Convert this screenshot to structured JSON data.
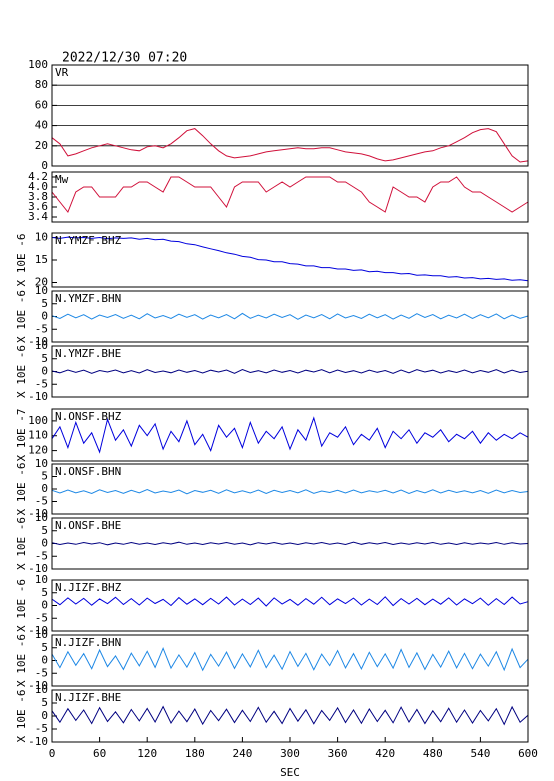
{
  "chart_data": {
    "type": "line",
    "title": "2022/12/30 07:20",
    "xlabel": "SEC",
    "xlim": [
      0,
      600
    ],
    "xticks": [
      0,
      60,
      120,
      180,
      240,
      300,
      360,
      420,
      480,
      540,
      600
    ],
    "x": [
      0,
      10,
      20,
      30,
      40,
      50,
      60,
      70,
      80,
      90,
      100,
      110,
      120,
      130,
      140,
      150,
      160,
      170,
      180,
      190,
      200,
      210,
      220,
      230,
      240,
      250,
      260,
      270,
      280,
      290,
      300,
      310,
      320,
      330,
      340,
      350,
      360,
      370,
      380,
      390,
      400,
      410,
      420,
      430,
      440,
      450,
      460,
      470,
      480,
      490,
      500,
      510,
      520,
      530,
      540,
      550,
      560,
      570,
      580,
      590,
      600
    ],
    "series": [
      {
        "name": "VR",
        "color": "#d0103a",
        "ylim": [
          0,
          100
        ],
        "yticks": [
          0,
          20,
          40,
          60,
          80,
          100
        ],
        "grid": true,
        "values": [
          28,
          22,
          10,
          12,
          15,
          18,
          20,
          22,
          20,
          18,
          16,
          15,
          19,
          20,
          18,
          22,
          28,
          35,
          37,
          30,
          22,
          15,
          10,
          8,
          9,
          10,
          12,
          14,
          15,
          16,
          17,
          18,
          17,
          17,
          18,
          18,
          16,
          14,
          13,
          12,
          10,
          7,
          5,
          6,
          8,
          10,
          12,
          14,
          15,
          18,
          20,
          24,
          28,
          33,
          36,
          37,
          34,
          22,
          10,
          4,
          5
        ]
      },
      {
        "name": "Mw",
        "color": "#d0103a",
        "ylim": [
          3.3,
          4.3
        ],
        "yticks": [
          3.4,
          3.6,
          3.8,
          {
            "value": 4,
            "label": "4.0"
          },
          4.2
        ],
        "values": [
          3.9,
          3.7,
          3.5,
          3.9,
          4.0,
          4.0,
          3.8,
          3.8,
          3.8,
          4.0,
          4.0,
          4.1,
          4.1,
          4.0,
          3.9,
          4.2,
          4.2,
          4.1,
          4.0,
          4.0,
          4.0,
          3.8,
          3.6,
          4.0,
          4.1,
          4.1,
          4.1,
          3.9,
          4.0,
          4.1,
          4.0,
          4.1,
          4.2,
          4.2,
          4.2,
          4.2,
          4.1,
          4.1,
          4.0,
          3.9,
          3.7,
          3.6,
          3.5,
          4.0,
          3.9,
          3.8,
          3.8,
          3.7,
          4.0,
          4.1,
          4.1,
          4.2,
          4.0,
          3.9,
          3.9,
          3.8,
          3.7,
          3.6,
          3.5,
          3.6,
          3.7
        ]
      },
      {
        "name": "N.YMZF.BHZ",
        "ylabel": "X 10E -6",
        "color": "#0000dd",
        "ylim": [
          21,
          9
        ],
        "yticks": [
          10,
          15,
          20
        ],
        "values": [
          10,
          10.2,
          9.9,
          10.1,
          10,
          10.2,
          10,
          10.3,
          10.1,
          10.2,
          10.1,
          10.4,
          10.2,
          10.5,
          10.4,
          10.8,
          10.9,
          11.4,
          11.6,
          12.1,
          12.5,
          12.9,
          13.4,
          13.7,
          14.2,
          14.4,
          14.9,
          15,
          15.4,
          15.4,
          15.8,
          15.9,
          16.3,
          16.3,
          16.7,
          16.7,
          17,
          17,
          17.3,
          17.2,
          17.6,
          17.5,
          17.8,
          17.8,
          18.1,
          18,
          18.4,
          18.3,
          18.5,
          18.5,
          18.8,
          18.7,
          19,
          18.9,
          19.2,
          19.1,
          19.3,
          19.2,
          19.5,
          19.4,
          19.6
        ]
      },
      {
        "name": "N.YMZF.BHN",
        "ylabel": "X 10E -6",
        "color": "#1e88e5",
        "ylim": [
          -10,
          10
        ],
        "yticks": [
          -10,
          -5,
          0,
          5,
          10
        ],
        "values": [
          0.3,
          -0.8,
          0.9,
          -0.5,
          0.7,
          -1,
          0.6,
          -0.4,
          0.8,
          -0.7,
          0.5,
          -0.9,
          1.1,
          -0.6,
          0.4,
          -0.8,
          0.9,
          -0.3,
          0.7,
          -1,
          0.6,
          -0.5,
          0.8,
          -0.9,
          1.2,
          -0.7,
          0.5,
          -0.6,
          0.9,
          -0.4,
          0.7,
          -1.1,
          0.6,
          -0.5,
          0.8,
          -0.9,
          1,
          -0.6,
          0.4,
          -0.8,
          0.9,
          -0.5,
          0.7,
          -1,
          0.6,
          -0.7,
          1.1,
          -0.4,
          0.8,
          -0.9,
          0.5,
          -0.6,
          0.9,
          -0.8,
          0.7,
          -0.5,
          1,
          -0.9,
          0.6,
          -0.7,
          0.2
        ]
      },
      {
        "name": "N.YMZF.BHE",
        "ylabel": "X 10E -6",
        "color": "#000080",
        "ylim": [
          -10,
          10
        ],
        "yticks": [
          -10,
          -5,
          0,
          5,
          10
        ],
        "values": [
          0.2,
          -0.5,
          0.6,
          -0.3,
          0.5,
          -0.7,
          0.4,
          -0.2,
          0.6,
          -0.5,
          0.3,
          -0.6,
          0.7,
          -0.4,
          0.2,
          -0.5,
          0.6,
          -0.3,
          0.4,
          -0.6,
          0.5,
          -0.2,
          0.6,
          -0.7,
          0.8,
          -0.4,
          0.3,
          -0.5,
          0.6,
          -0.3,
          0.4,
          -0.6,
          0.5,
          -0.2,
          0.7,
          -0.5,
          0.6,
          -0.4,
          0.3,
          -0.6,
          0.5,
          -0.3,
          0.4,
          -0.7,
          0.6,
          -0.5,
          0.7,
          -0.2,
          0.5,
          -0.6,
          0.3,
          -0.4,
          0.6,
          -0.5,
          0.4,
          -0.3,
          0.7,
          -0.6,
          0.5,
          -0.4,
          0.1
        ]
      },
      {
        "name": "N.ONSF.BHZ",
        "ylabel": "X 10E -7",
        "color": "#0000dd",
        "ylim": [
          127,
          92
        ],
        "yticks": [
          100,
          110,
          120
        ],
        "values": [
          112,
          104,
          118,
          101,
          115,
          108,
          121,
          99,
          113,
          106,
          117,
          103,
          110,
          102,
          119,
          107,
          114,
          100,
          116,
          109,
          120,
          103,
          111,
          105,
          118,
          101,
          115,
          107,
          112,
          104,
          119,
          106,
          113,
          98,
          117,
          108,
          111,
          104,
          116,
          109,
          113,
          105,
          118,
          107,
          112,
          106,
          115,
          108,
          111,
          106,
          114,
          109,
          112,
          107,
          115,
          108,
          113,
          109,
          112,
          108,
          111
        ]
      },
      {
        "name": "N.ONSF.BHN",
        "ylabel": "X 10E -6",
        "color": "#1e88e5",
        "ylim": [
          -10,
          10
        ],
        "yticks": [
          -10,
          -5,
          0,
          5,
          10
        ],
        "values": [
          -0.5,
          -1.6,
          -0.4,
          -1.5,
          -0.7,
          -1.8,
          -0.3,
          -1.4,
          -0.6,
          -1.7,
          -0.5,
          -1.5,
          -0.2,
          -1.6,
          -0.8,
          -1.4,
          -0.4,
          -1.9,
          -0.6,
          -1.3,
          -0.5,
          -1.7,
          -0.3,
          -1.5,
          -0.7,
          -1.6,
          -0.4,
          -1.8,
          -0.5,
          -1.4,
          -0.6,
          -1.5,
          -0.3,
          -1.7,
          -0.8,
          -1.4,
          -0.5,
          -1.6,
          -0.4,
          -1.5,
          -0.7,
          -1.3,
          -0.5,
          -1.6,
          -0.4,
          -1.8,
          -0.6,
          -1.5,
          -0.3,
          -1.6,
          -0.5,
          -1.4,
          -0.7,
          -1.5,
          -0.6,
          -1.7,
          -0.4,
          -1.5,
          -0.6,
          -1.4,
          -1
        ]
      },
      {
        "name": "N.ONSF.BHE",
        "ylabel": "X 10E -6",
        "color": "#000080",
        "ylim": [
          -10,
          10
        ],
        "yticks": [
          -10,
          -5,
          0,
          5,
          10
        ],
        "values": [
          0.3,
          -0.4,
          0.2,
          -0.3,
          0.4,
          -0.2,
          0.3,
          -0.5,
          0.2,
          -0.3,
          0.4,
          -0.3,
          0.2,
          -0.4,
          0.3,
          -0.2,
          0.5,
          -0.3,
          0.2,
          -0.4,
          0.3,
          -0.2,
          0.4,
          -0.3,
          0.2,
          -0.5,
          0.3,
          -0.2,
          0.4,
          -0.3,
          0.2,
          -0.4,
          0.3,
          -0.2,
          0.4,
          -0.3,
          0.2,
          -0.4,
          0.5,
          -0.3,
          0.3,
          -0.2,
          0.4,
          -0.4,
          0.2,
          -0.3,
          0.3,
          -0.2,
          0.4,
          -0.3,
          0.2,
          -0.4,
          0.3,
          -0.3,
          0.2,
          -0.2,
          0.4,
          -0.3,
          0.3,
          -0.2,
          0
        ]
      },
      {
        "name": "N.JIZF.BHZ",
        "ylabel": "X 10E -6",
        "color": "#0000dd",
        "ylim": [
          -10,
          10
        ],
        "yticks": [
          -10,
          -5,
          0,
          5,
          10
        ],
        "values": [
          2.5,
          0.3,
          3,
          0.6,
          2.8,
          0.1,
          2.6,
          0.7,
          3.2,
          0.4,
          2.7,
          0.2,
          2.9,
          0.8,
          2.4,
          0,
          3.1,
          0.5,
          2.6,
          0.3,
          2.8,
          0.6,
          3.3,
          0.2,
          2.5,
          0.4,
          2.9,
          -0.2,
          3,
          0.6,
          2.4,
          0.1,
          2.7,
          0.5,
          3.2,
          0.3,
          2.6,
          0.8,
          2.9,
          0.2,
          2.5,
          0.4,
          3.4,
          0,
          2.7,
          0.6,
          2.8,
          0.3,
          2.5,
          0.5,
          3,
          0.2,
          2.6,
          0.7,
          2.9,
          0.1,
          2.7,
          0.4,
          3.3,
          0.6,
          1.5
        ]
      },
      {
        "name": "N.JIZF.BHN",
        "ylabel": "X 10E -6",
        "color": "#1e88e5",
        "ylim": [
          -10,
          10
        ],
        "yticks": [
          -10,
          -5,
          0,
          5,
          10
        ],
        "values": [
          2.5,
          -2.8,
          3.4,
          -1.9,
          2.7,
          -3.2,
          4.1,
          -2.4,
          1.8,
          -3.5,
          2.9,
          -2.1,
          3.6,
          -2.7,
          4.8,
          -3,
          2.2,
          -2.6,
          3.1,
          -3.8,
          2.4,
          -2.2,
          3.3,
          -3.1,
          2.6,
          -2.5,
          4,
          -2.8,
          2.1,
          -3.4,
          3.5,
          -2.3,
          2.8,
          -3.6,
          2.5,
          -2,
          3.9,
          -2.9,
          2.7,
          -3.3,
          3.2,
          -2.4,
          2.6,
          -3,
          4.3,
          -2.7,
          3,
          -3.5,
          2.4,
          -2.6,
          3.7,
          -2.9,
          2.8,
          -3.2,
          2.5,
          -2.2,
          3.4,
          -3.7,
          4.5,
          -2.8,
          0.5
        ]
      },
      {
        "name": "N.JIZF.BHE",
        "ylabel": "X 10E -6",
        "color": "#000080",
        "ylim": [
          -10,
          10
        ],
        "yticks": [
          -10,
          -5,
          0,
          5,
          10
        ],
        "values": [
          2,
          -2.4,
          2.8,
          -1.7,
          2.3,
          -2.9,
          3.2,
          -2.1,
          1.6,
          -2.6,
          2.5,
          -1.9,
          2.9,
          -2.3,
          3.6,
          -2.7,
          1.9,
          -2.2,
          2.7,
          -3.1,
          2.1,
          -1.8,
          2.6,
          -2.5,
          2.2,
          -2.1,
          3.3,
          -2.4,
          1.8,
          -2.9,
          2.9,
          -2,
          2.4,
          -3,
          2.1,
          -1.7,
          3.1,
          -2.5,
          2.3,
          -2.8,
          2.7,
          -2.1,
          2.2,
          -2.6,
          3.4,
          -2.3,
          2.5,
          -2.9,
          2,
          -2.2,
          3,
          -2.4,
          2.3,
          -2.7,
          2.1,
          -1.9,
          2.8,
          -3.2,
          3.5,
          -2.4,
          0.3
        ]
      }
    ]
  }
}
